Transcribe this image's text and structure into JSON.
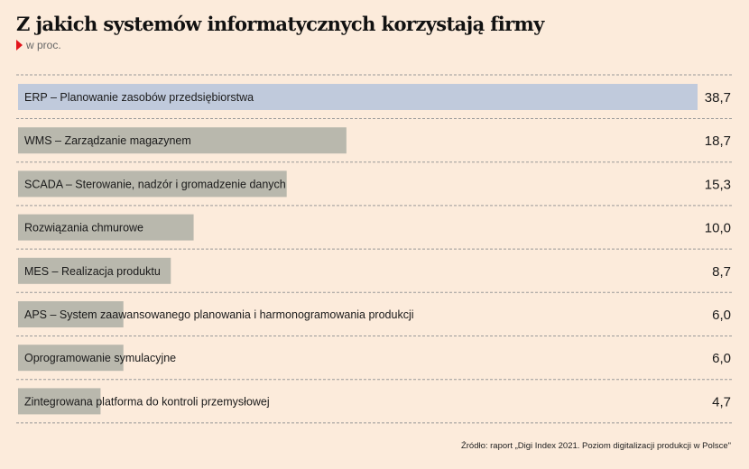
{
  "header": {
    "title": "Z jakich systemów informatycznych korzystają firmy",
    "subtitle": "w proc."
  },
  "source": "Źródło: raport „Digi Index 2021. Poziom digitalizacji produkcji w Polsce\"",
  "colors": {
    "background": "#fcebdb",
    "highlight_bar": "#c0cadc",
    "bar": "#b9b8ad",
    "marker": "#e3141b",
    "divider": "#9a9a9a"
  },
  "chart_data": {
    "type": "bar",
    "orientation": "horizontal",
    "categories": [
      "ERP – Planowanie zasobów przedsiębiorstwa",
      "WMS – Zarządzanie magazynem",
      "SCADA – Sterowanie, nadzór i gromadzenie danych",
      "Rozwiązania chmurowe",
      "MES – Realizacja produktu",
      "APS – System zaawansowanego planowania i harmonogramowania produkcji",
      "Oprogramowanie symulacyjne",
      "Zintegrowana platforma do kontroli przemysłowej"
    ],
    "values": [
      38.7,
      18.7,
      15.3,
      10.0,
      8.7,
      6.0,
      6.0,
      4.7
    ],
    "value_labels": [
      "38,7",
      "18,7",
      "15,3",
      "10,0",
      "8,7",
      "6,0",
      "6,0",
      "4,7"
    ],
    "highlight_index": 0,
    "xlim": [
      0,
      38.7
    ],
    "grid": false
  }
}
